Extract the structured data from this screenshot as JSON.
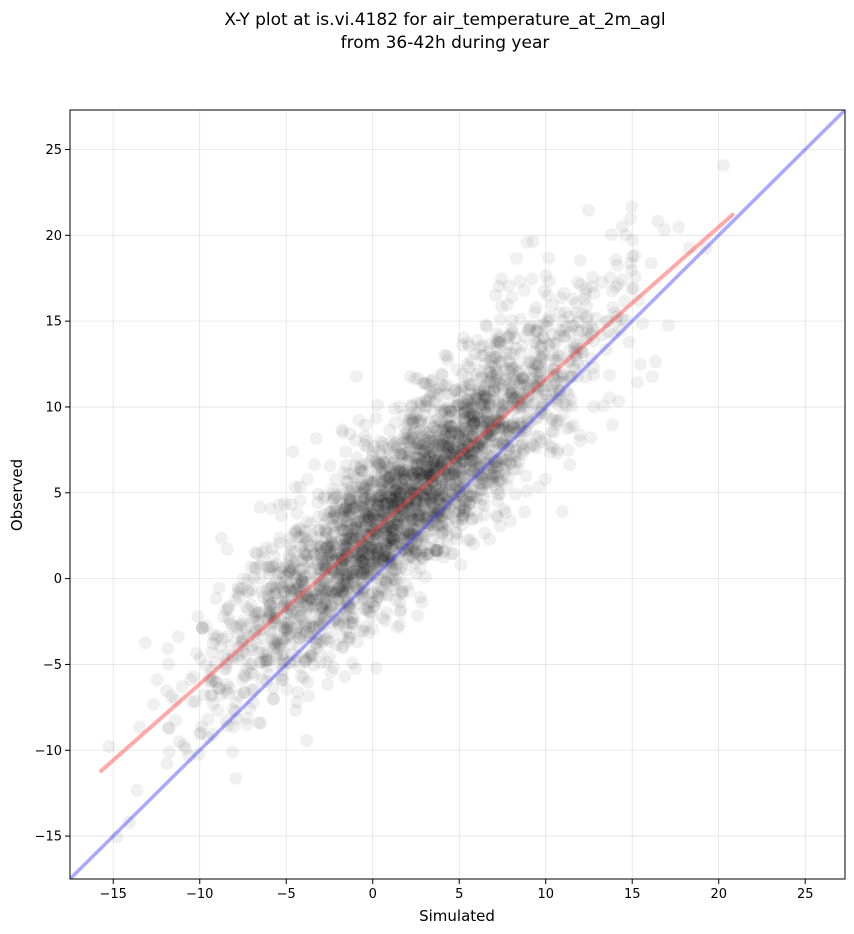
{
  "chart_data": {
    "type": "scatter",
    "title": [
      "X-Y plot at is.vi.4182 for air_temperature_at_2m_agl",
      "from 36-42h during year"
    ],
    "xlabel": "Simulated",
    "ylabel": "Observed",
    "xlim": [
      -17.5,
      27.3
    ],
    "ylim": [
      -17.5,
      27.3
    ],
    "xticks": [
      -15,
      -10,
      -5,
      0,
      5,
      10,
      15,
      20,
      25
    ],
    "yticks": [
      -15,
      -10,
      -5,
      0,
      5,
      10,
      15,
      20,
      25
    ],
    "grid": true,
    "point_color": "#000000",
    "point_alpha": 0.06,
    "reference_line": {
      "name": "1:1",
      "color": "#4040ff",
      "slope": 1,
      "intercept": 0
    },
    "fit_line": {
      "color": "#ff4040",
      "x": [
        -15.7,
        20.8
      ],
      "y": [
        -11.2,
        21.2
      ]
    },
    "points": {
      "approx_count": 3000,
      "mean_x": 2.0,
      "mean_y": 4.2,
      "fit_slope": 0.89,
      "fit_intercept": 2.8,
      "x_range": [
        -16.0,
        21.0
      ],
      "residual_sd": 2.6
    }
  }
}
